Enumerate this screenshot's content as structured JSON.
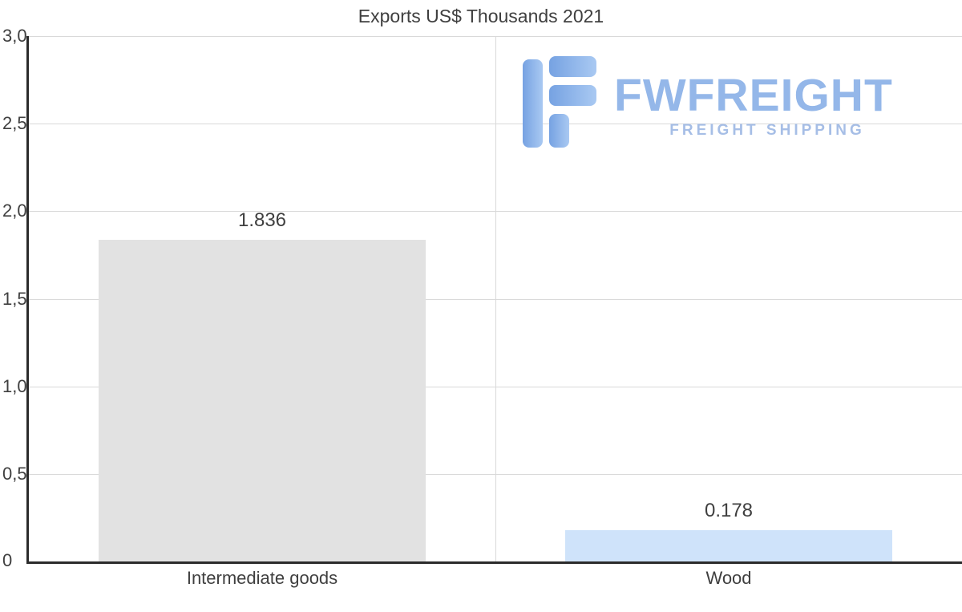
{
  "chart_data": {
    "type": "bar",
    "title": "Exports US$ Thousands 2021",
    "categories": [
      "Intermediate goods",
      "Wood"
    ],
    "values": [
      1.836,
      0.178
    ],
    "value_labels": [
      "1.836",
      "0.178"
    ],
    "bar_colors": [
      "#e2e2e2",
      "#cfe3fa"
    ],
    "ylim": [
      0,
      3
    ],
    "ytick_labels": [
      "3,0",
      "2,5",
      "2,0",
      "1,5",
      "1,0",
      "0,5",
      "0"
    ],
    "grid": true,
    "legend_position": "none",
    "xlabel": "",
    "ylabel": ""
  },
  "watermark": {
    "brand": "FWFREIGHT",
    "tagline": "FREIGHT SHIPPING",
    "brand_color": "#94b7e9",
    "icon_color": "#86ade6",
    "icon_name": "fwfreight-logo-icon"
  },
  "colors": {
    "gridline": "#d9d9d9",
    "axis": "#2b2b2b",
    "text": "#3f3f3f",
    "background": "#ffffff"
  }
}
